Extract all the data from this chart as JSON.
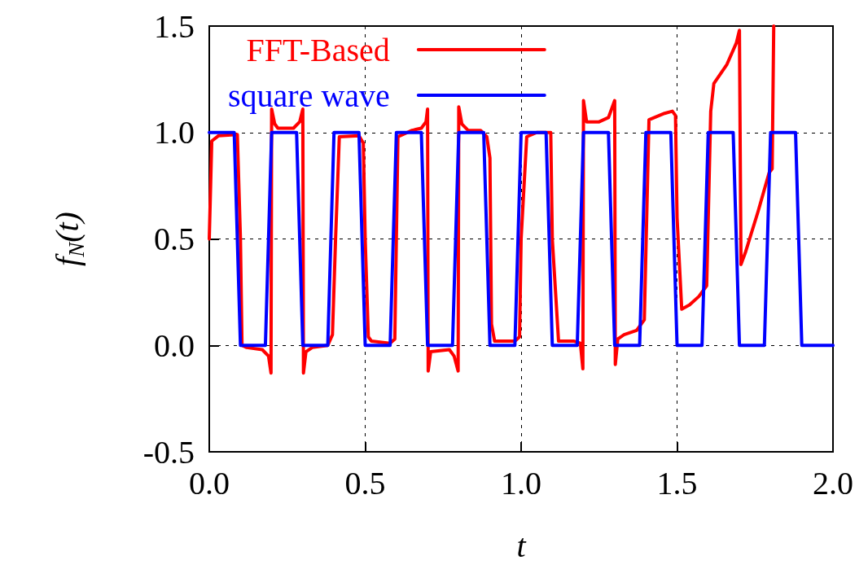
{
  "chart_data": {
    "type": "line",
    "xlabel": "t",
    "ylabel": "f$_{N}$(t)",
    "xlim": [
      0,
      2
    ],
    "xticks": [
      {
        "value": 0,
        "label": "0.0"
      },
      {
        "value": 0.5,
        "label": "0.5"
      },
      {
        "value": 1,
        "label": "1.0"
      },
      {
        "value": 1.5,
        "label": "1.5"
      },
      {
        "value": 2,
        "label": "2.0"
      }
    ],
    "ylim": [
      -0.5,
      1.5
    ],
    "yticks": [
      {
        "value": -0.5,
        "label": "-0.5"
      },
      {
        "value": 0,
        "label": "0.0"
      },
      {
        "value": 0.5,
        "label": "0.5"
      },
      {
        "value": 1,
        "label": "1.0"
      },
      {
        "value": 1.5,
        "label": "1.5"
      }
    ],
    "grid": true,
    "legend": "top left",
    "marker": "none",
    "line_style": "solid",
    "series": [
      {
        "name": "FFT-Based",
        "color": "#ff0000",
        "x": [
          0,
          0.008,
          0.03,
          0.09,
          0.1,
          0.105,
          0.12,
          0.17,
          0.19,
          0.198,
          0.2,
          0.21,
          0.22,
          0.27,
          0.29,
          0.3,
          0.302,
          0.31,
          0.33,
          0.38,
          0.395,
          0.405,
          0.417,
          0.48,
          0.494,
          0.5,
          0.51,
          0.52,
          0.58,
          0.595,
          0.605,
          0.65,
          0.68,
          0.695,
          0.7,
          0.702,
          0.71,
          0.77,
          0.785,
          0.798,
          0.8,
          0.81,
          0.83,
          0.87,
          0.89,
          0.9,
          0.905,
          0.915,
          0.98,
          0.995,
          1.0,
          1.018,
          1.05,
          1.095,
          1.1,
          1.12,
          1.17,
          1.19,
          1.198,
          1.2,
          1.21,
          1.25,
          1.28,
          1.3,
          1.302,
          1.31,
          1.33,
          1.37,
          1.385,
          1.395,
          1.41,
          1.46,
          1.485,
          1.495,
          1.5,
          1.515,
          1.54,
          1.57,
          1.595,
          1.608,
          1.618,
          1.66,
          1.69,
          1.7,
          1.705,
          1.72,
          1.76,
          1.795,
          1.805,
          1.81
        ],
        "values": [
          0.5,
          0.96,
          0.985,
          0.99,
          0.5,
          0.0,
          -0.01,
          -0.02,
          -0.05,
          -0.13,
          1.11,
          1.04,
          1.02,
          1.02,
          1.05,
          1.11,
          -0.13,
          -0.03,
          -0.01,
          0.0,
          0.05,
          0.5,
          0.98,
          0.985,
          0.95,
          0.5,
          0.04,
          0.02,
          0.01,
          0.03,
          0.98,
          1.01,
          1.02,
          1.05,
          1.11,
          -0.12,
          -0.03,
          -0.02,
          -0.05,
          -0.12,
          1.12,
          1.04,
          1.01,
          1.01,
          0.98,
          0.88,
          0.1,
          0.02,
          0.02,
          0.04,
          0.5,
          0.98,
          1.0,
          1.0,
          0.5,
          0.02,
          0.02,
          0.01,
          -0.11,
          1.15,
          1.05,
          1.05,
          1.07,
          1.15,
          -0.09,
          0.03,
          0.05,
          0.07,
          0.1,
          0.12,
          1.06,
          1.09,
          1.1,
          1.08,
          0.6,
          0.17,
          0.19,
          0.23,
          0.28,
          1.1,
          1.23,
          1.32,
          1.42,
          1.48,
          0.38,
          0.44,
          0.63,
          0.81,
          0.83,
          1.5
        ]
      },
      {
        "name": "square wave",
        "color": "#0000ff",
        "x": [
          0,
          0.08,
          0.1,
          0.18,
          0.2,
          0.28,
          0.3,
          0.38,
          0.4,
          0.48,
          0.5,
          0.58,
          0.6,
          0.68,
          0.7,
          0.78,
          0.8,
          0.88,
          0.9,
          0.98,
          1.0,
          1.08,
          1.1,
          1.18,
          1.2,
          1.28,
          1.3,
          1.38,
          1.4,
          1.48,
          1.5,
          1.58,
          1.6,
          1.68,
          1.7,
          1.78,
          1.8,
          1.88,
          1.9,
          2.0
        ],
        "values": [
          1,
          1,
          0,
          0,
          1,
          1,
          0,
          0,
          1,
          1,
          0,
          0,
          1,
          1,
          0,
          0,
          1,
          1,
          0,
          0,
          1,
          1,
          0,
          0,
          1,
          1,
          0,
          0,
          1,
          1,
          0,
          0,
          1,
          1,
          0,
          0,
          1,
          1,
          0,
          0
        ]
      }
    ]
  }
}
